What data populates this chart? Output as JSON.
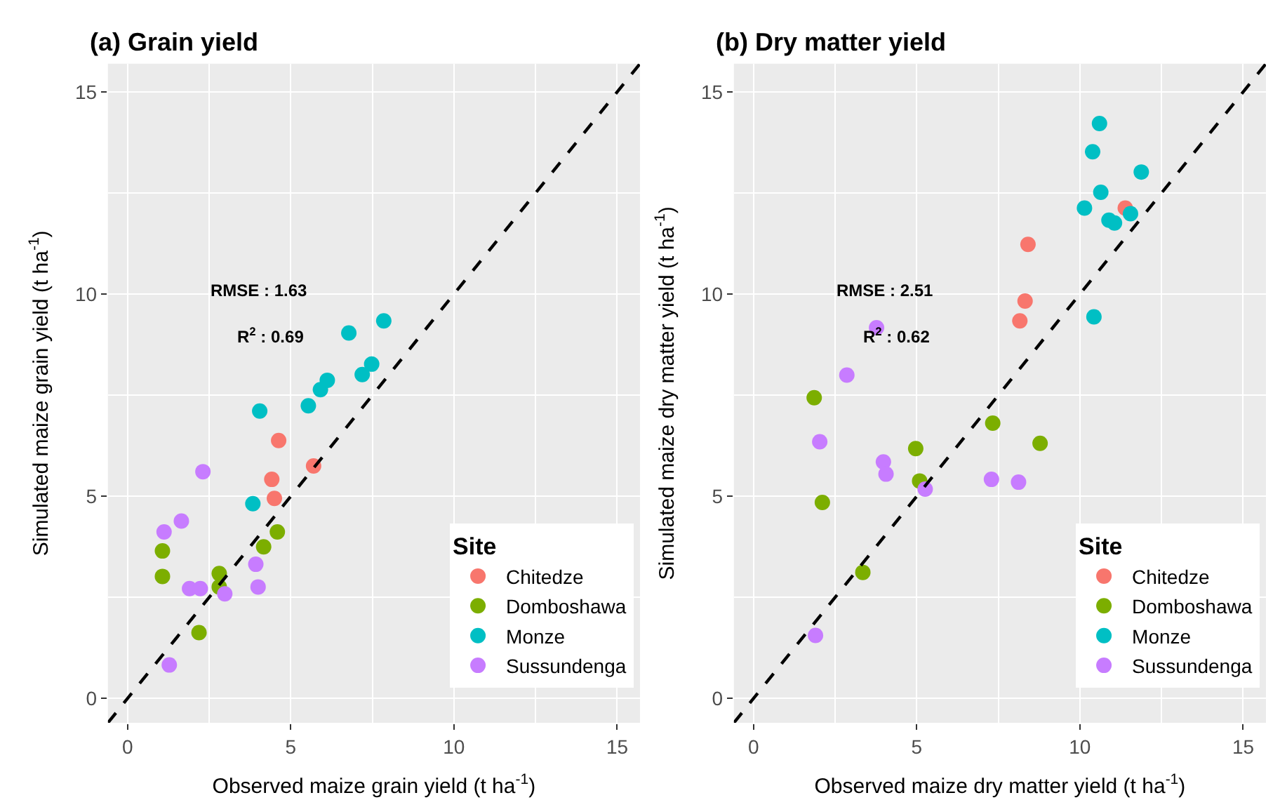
{
  "chart_data": [
    {
      "type": "scatter",
      "title": "(a) Grain yield",
      "xlabel": "Observed maize grain yield (t ha$^{-1}$)",
      "ylabel": "Simulated maize grain yield (t ha$^{-1}$)",
      "legend_title": "Site",
      "legend": "bottom right",
      "grid": true,
      "marker": "circle",
      "xlim": [
        -0.6,
        15.7
      ],
      "ylim": [
        -0.6,
        15.7
      ],
      "xticks": [
        0,
        5,
        10,
        15
      ],
      "yticks": [
        0,
        5,
        10,
        15
      ],
      "annotations": [
        "RMSE : 1.63",
        "R$^{2}$ : 0.69"
      ],
      "series": [
        {
          "name": "Chitedze",
          "color": "#f8766d",
          "x": [
            4.63,
            4.42,
            4.5,
            5.7
          ],
          "values": [
            6.38,
            5.42,
            4.95,
            5.75
          ]
        },
        {
          "name": "Domboshawa",
          "color": "#7cae00",
          "x": [
            1.07,
            1.07,
            2.81,
            2.81,
            2.19,
            4.17,
            4.59
          ],
          "values": [
            3.65,
            3.02,
            3.09,
            2.76,
            1.63,
            3.75,
            4.12
          ]
        },
        {
          "name": "Monze",
          "color": "#00bfc4",
          "x": [
            3.84,
            4.05,
            5.54,
            5.91,
            6.12,
            7.19,
            7.48,
            6.78,
            7.85
          ],
          "values": [
            4.82,
            7.11,
            7.24,
            7.64,
            7.87,
            8.01,
            8.27,
            9.04,
            9.34
          ]
        },
        {
          "name": "Sussundenga",
          "color": "#c77cff",
          "x": [
            2.31,
            1.65,
            1.12,
            1.9,
            2.23,
            2.98,
            1.28,
            3.93,
            4.0
          ],
          "values": [
            5.61,
            4.39,
            4.12,
            2.72,
            2.72,
            2.59,
            0.83,
            3.32,
            2.76
          ]
        },
        {
          "type": "line",
          "color": "#000000",
          "line_style": "dashed",
          "marker": "none",
          "x": [
            -0.6,
            15.7
          ],
          "values": [
            -0.6,
            15.7
          ]
        }
      ]
    },
    {
      "type": "scatter",
      "title": "(b) Dry matter yield",
      "xlabel": "Observed maize dry matter yield (t ha$^{-1}$)",
      "ylabel": "Simulated maize dry matter yield (t ha$^{-1}$)",
      "legend_title": "Site",
      "legend": "bottom right",
      "grid": true,
      "marker": "circle",
      "xlim": [
        -0.6,
        15.7
      ],
      "ylim": [
        -0.6,
        15.7
      ],
      "xticks": [
        0,
        5,
        10,
        15
      ],
      "yticks": [
        0,
        5,
        10,
        15
      ],
      "annotations": [
        "RMSE : 2.51",
        "R$^{2}$ : 0.62"
      ],
      "series": [
        {
          "name": "Chitedze",
          "color": "#f8766d",
          "x": [
            11.39,
            8.41,
            8.32,
            8.16
          ],
          "values": [
            12.13,
            11.23,
            9.83,
            9.34
          ]
        },
        {
          "name": "Domboshawa",
          "color": "#7cae00",
          "x": [
            1.86,
            7.33,
            8.78,
            4.97,
            5.09,
            2.11,
            3.35
          ],
          "values": [
            7.44,
            6.81,
            6.31,
            6.18,
            5.38,
            4.85,
            3.12
          ]
        },
        {
          "name": "Monze",
          "color": "#00bfc4",
          "x": [
            10.6,
            10.39,
            11.88,
            10.64,
            10.14,
            11.55,
            10.89,
            11.06,
            10.43
          ],
          "values": [
            14.22,
            13.52,
            13.02,
            12.52,
            12.13,
            11.99,
            11.83,
            11.76,
            9.44
          ]
        },
        {
          "name": "Sussundenga",
          "color": "#c77cff",
          "x": [
            3.77,
            2.86,
            2.03,
            3.98,
            4.06,
            5.26,
            7.29,
            8.12,
            1.9
          ],
          "values": [
            9.17,
            8.0,
            6.35,
            5.85,
            5.55,
            5.18,
            5.42,
            5.35,
            1.56
          ]
        },
        {
          "type": "line",
          "color": "#000000",
          "line_style": "dashed",
          "marker": "none",
          "x": [
            -0.6,
            15.7
          ],
          "values": [
            -0.6,
            15.7
          ]
        }
      ]
    }
  ]
}
